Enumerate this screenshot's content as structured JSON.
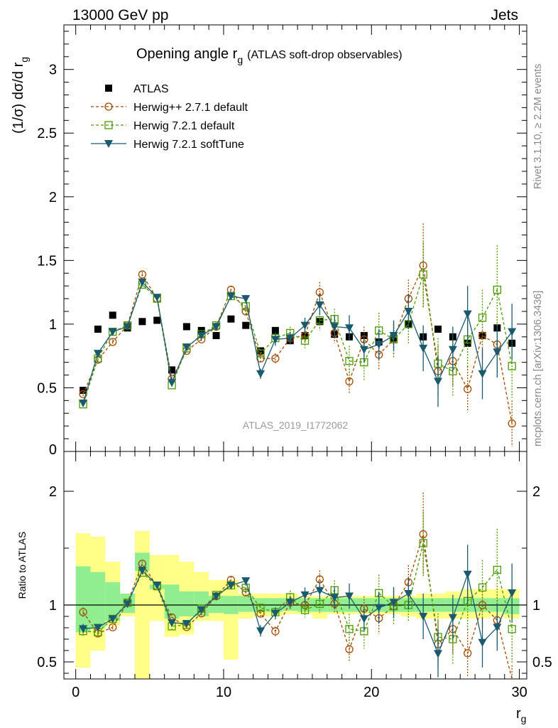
{
  "header": {
    "left": "13000 GeV pp",
    "right": "Jets"
  },
  "side": {
    "rivet": "Rivet 3.1.10, ≥ 2.2M events",
    "site": "mcplots.cern.ch [arXiv:1306.3436]"
  },
  "chart_data": {
    "type": "line",
    "title": "Opening angle r",
    "title_sub": "g",
    "title_suffix": "(ATLAS soft-drop observables)",
    "analysis_label": "ATLAS_2019_I1772062",
    "ylabel_main": "(1/σ) dσ/d r",
    "ylabel_main_sub": "g",
    "ylabel_ratio": "Ratio to ATLAS",
    "xlabel": "r",
    "xlabel_sub": "g",
    "xlim": [
      -0.8,
      30.5
    ],
    "ylim_main": [
      0,
      3.35
    ],
    "ylim_ratio": [
      0.35,
      2.35
    ],
    "x_ticks": [
      "0",
      "10",
      "20",
      "30"
    ],
    "y_ticks_main": [
      "0.5",
      "1",
      "1.5",
      "2",
      "2.5",
      "3"
    ],
    "y_ticks_ratio": [
      "0.5",
      "1",
      "2"
    ],
    "x": [
      0.5,
      1.5,
      2.5,
      3.5,
      4.5,
      5.5,
      6.5,
      7.5,
      8.5,
      9.5,
      10.5,
      11.5,
      12.5,
      13.5,
      14.5,
      15.5,
      16.5,
      17.5,
      18.5,
      19.5,
      20.5,
      21.5,
      22.5,
      23.5,
      24.5,
      25.5,
      26.5,
      27.5,
      28.5,
      29.5
    ],
    "series": [
      {
        "name": "ATLAS",
        "color": "#000000",
        "style": "data",
        "values": [
          0.48,
          0.96,
          1.07,
          0.97,
          1.02,
          1.03,
          0.64,
          0.98,
          0.95,
          0.91,
          1.04,
          0.99,
          0.79,
          0.95,
          0.87,
          0.91,
          1.02,
          0.92,
          0.9,
          0.91,
          0.86,
          0.89,
          1.0,
          0.9,
          0.96,
          0.9,
          0.85,
          0.91,
          0.97,
          0.85
        ]
      },
      {
        "name": "Herwig++ 2.7.1 default",
        "color": "#a34a00",
        "style": "circle-dashed",
        "values": [
          0.45,
          0.72,
          0.86,
          0.99,
          1.39,
          1.2,
          0.57,
          0.79,
          0.88,
          0.98,
          1.27,
          1.1,
          0.73,
          0.73,
          0.89,
          0.91,
          1.25,
          0.93,
          0.55,
          0.88,
          0.76,
          0.88,
          1.2,
          1.46,
          0.63,
          0.71,
          0.49,
          0.91,
          0.84,
          0.22
        ],
        "err": [
          0.02,
          0.02,
          0.02,
          0.02,
          0.02,
          0.02,
          0.02,
          0.02,
          0.02,
          0.02,
          0.03,
          0.03,
          0.03,
          0.04,
          0.05,
          0.05,
          0.08,
          0.08,
          0.1,
          0.1,
          0.12,
          0.12,
          0.15,
          0.33,
          0.2,
          0.2,
          0.18,
          0.18,
          0.22,
          0.18
        ]
      },
      {
        "name": "Herwig 7.2.1 default",
        "color": "#4a9a00",
        "style": "square-dashed",
        "values": [
          0.37,
          0.73,
          0.94,
          0.99,
          1.31,
          1.2,
          0.52,
          0.81,
          0.92,
          0.99,
          1.22,
          1.14,
          0.77,
          0.89,
          0.93,
          0.87,
          1.03,
          1.04,
          0.71,
          0.7,
          0.95,
          0.88,
          1.0,
          1.39,
          0.69,
          0.63,
          0.88,
          1.05,
          1.27,
          0.67
        ],
        "err": [
          0.02,
          0.02,
          0.02,
          0.02,
          0.02,
          0.02,
          0.02,
          0.02,
          0.02,
          0.02,
          0.03,
          0.03,
          0.03,
          0.04,
          0.05,
          0.06,
          0.08,
          0.08,
          0.12,
          0.14,
          0.14,
          0.14,
          0.15,
          0.25,
          0.2,
          0.2,
          0.22,
          0.22,
          0.35,
          0.25
        ]
      },
      {
        "name": "Herwig 7.2.1 softTune",
        "color": "#1a5a6e",
        "style": "triangle-solid",
        "values": [
          0.38,
          0.77,
          0.94,
          0.98,
          1.33,
          1.21,
          0.54,
          0.82,
          0.91,
          0.98,
          1.22,
          1.2,
          0.61,
          0.88,
          0.89,
          0.99,
          1.15,
          0.98,
          0.97,
          0.8,
          0.84,
          0.91,
          1.1,
          0.81,
          0.55,
          0.8,
          1.08,
          0.61,
          0.78,
          0.94
        ],
        "err": [
          0.02,
          0.02,
          0.02,
          0.02,
          0.02,
          0.02,
          0.02,
          0.02,
          0.02,
          0.02,
          0.03,
          0.03,
          0.04,
          0.05,
          0.05,
          0.06,
          0.08,
          0.09,
          0.1,
          0.1,
          0.12,
          0.12,
          0.14,
          0.18,
          0.2,
          0.18,
          0.22,
          0.2,
          0.2,
          0.22
        ]
      }
    ],
    "ratio_band": {
      "inner_lo": [
        0.76,
        0.8,
        0.86,
        0.93,
        1.3,
        1.14,
        0.88,
        0.9,
        0.9,
        0.93,
        0.92,
        0.94,
        0.94,
        0.94,
        0.95,
        0.94,
        0.94,
        0.94,
        0.94,
        0.94,
        0.94,
        0.94,
        0.94,
        0.94,
        0.94,
        0.94,
        0.94,
        0.94,
        0.94,
        0.92
      ],
      "inner_hi": [
        1.34,
        1.29,
        1.2,
        1.1,
        1.46,
        1.18,
        1.18,
        1.12,
        1.12,
        1.08,
        1.08,
        1.08,
        1.06,
        1.06,
        1.06,
        1.06,
        1.06,
        1.06,
        1.06,
        1.06,
        1.06,
        1.06,
        1.06,
        1.06,
        1.06,
        1.06,
        1.06,
        1.06,
        1.06,
        1.06
      ],
      "outer_lo": [
        0.45,
        0.6,
        0.82,
        0.9,
        0.35,
        0.86,
        0.72,
        0.74,
        0.86,
        0.86,
        0.52,
        0.88,
        0.9,
        0.9,
        0.92,
        0.92,
        0.88,
        0.92,
        0.92,
        0.92,
        0.92,
        0.92,
        0.9,
        0.88,
        0.88,
        0.88,
        0.88,
        0.88,
        0.9,
        0.88
      ],
      "outer_hi": [
        1.63,
        1.6,
        1.38,
        1.1,
        1.65,
        1.44,
        1.44,
        1.38,
        1.29,
        1.22,
        1.22,
        1.1,
        1.1,
        1.1,
        1.1,
        1.08,
        1.08,
        1.08,
        1.08,
        1.08,
        1.08,
        1.08,
        1.08,
        1.1,
        1.1,
        1.12,
        1.14,
        1.14,
        1.14,
        1.14
      ],
      "inner_color": "#90ee90",
      "outer_color": "#ffff88"
    },
    "grid": false,
    "legend_position": "top-left"
  }
}
